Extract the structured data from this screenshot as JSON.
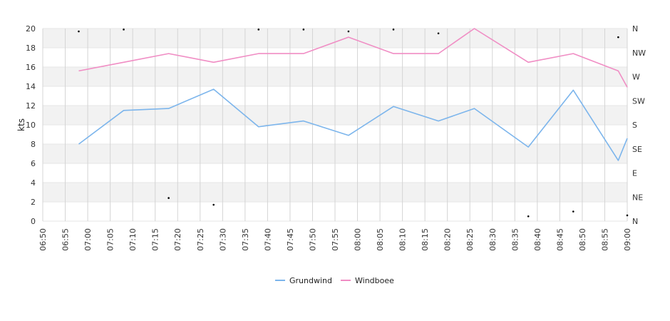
{
  "chart_data": {
    "type": "line",
    "title": "",
    "xlabel": "",
    "ylabel": "kts",
    "ylim": [
      0,
      20
    ],
    "y_ticks": [
      0,
      2,
      4,
      6,
      8,
      10,
      12,
      14,
      16,
      18,
      20
    ],
    "x_range": [
      "06:50",
      "09:00"
    ],
    "x_tick_labels": [
      "06:50",
      "06:55",
      "07:00",
      "07:05",
      "07:10",
      "07:15",
      "07:20",
      "07:25",
      "07:30",
      "07:35",
      "07:40",
      "07:45",
      "07:50",
      "07:55",
      "08:00",
      "08:05",
      "08:10",
      "08:15",
      "08:20",
      "08:25",
      "08:30",
      "08:35",
      "08:40",
      "08:45",
      "08:50",
      "08:55",
      "09:00"
    ],
    "y2_labels": [
      "N",
      "NE",
      "E",
      "SE",
      "S",
      "SW",
      "W",
      "NW",
      "N"
    ],
    "grid": true,
    "legend_position": "bottom-center",
    "series": [
      {
        "name": "Grundwind",
        "color": "#7cb5ec",
        "points": [
          {
            "x": "06:58",
            "y": 8.0
          },
          {
            "x": "07:08",
            "y": 11.5
          },
          {
            "x": "07:18",
            "y": 11.7
          },
          {
            "x": "07:28",
            "y": 13.7
          },
          {
            "x": "07:38",
            "y": 9.8
          },
          {
            "x": "07:48",
            "y": 10.4
          },
          {
            "x": "07:58",
            "y": 8.9
          },
          {
            "x": "08:08",
            "y": 11.9
          },
          {
            "x": "08:18",
            "y": 10.4
          },
          {
            "x": "08:26",
            "y": 11.7
          },
          {
            "x": "08:38",
            "y": 7.7
          },
          {
            "x": "08:48",
            "y": 13.6
          },
          {
            "x": "08:58",
            "y": 6.3
          },
          {
            "x": "09:00",
            "y": 8.6
          }
        ]
      },
      {
        "name": "Windboee",
        "color": "#f08dc4",
        "points": [
          {
            "x": "06:58",
            "y": 15.6
          },
          {
            "x": "07:08",
            "y": 16.5
          },
          {
            "x": "07:18",
            "y": 17.4
          },
          {
            "x": "07:28",
            "y": 16.5
          },
          {
            "x": "07:38",
            "y": 17.4
          },
          {
            "x": "07:48",
            "y": 17.4
          },
          {
            "x": "07:58",
            "y": 19.1
          },
          {
            "x": "08:08",
            "y": 17.4
          },
          {
            "x": "08:18",
            "y": 17.4
          },
          {
            "x": "08:26",
            "y": 20.0
          },
          {
            "x": "08:38",
            "y": 16.5
          },
          {
            "x": "08:48",
            "y": 17.4
          },
          {
            "x": "08:58",
            "y": 15.6
          },
          {
            "x": "09:00",
            "y": 13.9
          }
        ]
      }
    ],
    "direction_markers": [
      {
        "x": "06:58",
        "y": 19.7
      },
      {
        "x": "07:08",
        "y": 19.9
      },
      {
        "x": "07:18",
        "y": 2.4
      },
      {
        "x": "07:28",
        "y": 1.7
      },
      {
        "x": "07:38",
        "y": 19.9
      },
      {
        "x": "07:48",
        "y": 19.9
      },
      {
        "x": "07:58",
        "y": 19.7
      },
      {
        "x": "08:08",
        "y": 19.9
      },
      {
        "x": "08:18",
        "y": 19.5
      },
      {
        "x": "08:38",
        "y": 0.5
      },
      {
        "x": "08:48",
        "y": 1.0
      },
      {
        "x": "08:58",
        "y": 19.1
      },
      {
        "x": "09:00",
        "y": 0.6
      }
    ]
  }
}
